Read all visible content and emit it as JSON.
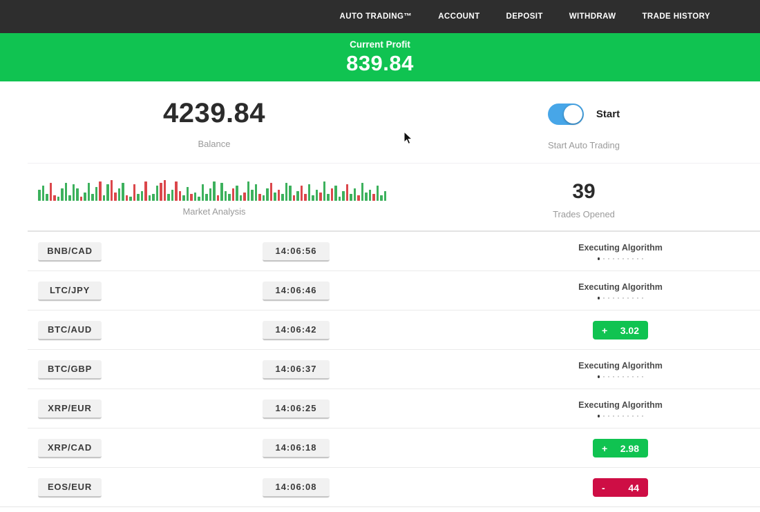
{
  "colors": {
    "green": "#10c351",
    "red": "#ce0e45",
    "toggle_blue": "#47a6e8",
    "nav_bg": "#2e2e2e",
    "bar_green": "#2daa4f",
    "bar_red": "#d8373c"
  },
  "nav": {
    "items": [
      {
        "label": "AUTO TRADING™"
      },
      {
        "label": "ACCOUNT"
      },
      {
        "label": "DEPOSIT"
      },
      {
        "label": "WITHDRAW"
      },
      {
        "label": "TRADE HISTORY"
      }
    ]
  },
  "profit_banner": {
    "label": "Current Profit",
    "value": "839.84"
  },
  "stats": {
    "balance": {
      "value": "4239.84",
      "label": "Balance"
    },
    "auto_trading": {
      "toggle_label": "Start",
      "label": "Start Auto Trading",
      "enabled": true
    },
    "trades_opened": {
      "value": "39",
      "label": "Trades Opened"
    }
  },
  "market_analysis": {
    "label": "Market Analysis",
    "bars": [
      "g16",
      "g22",
      "g10",
      "r26",
      "r8",
      "g6",
      "g18",
      "g26",
      "g8",
      "g24",
      "g18",
      "r6",
      "g12",
      "g26",
      "g10",
      "g20",
      "r28",
      "g8",
      "g24",
      "r30",
      "r12",
      "g18",
      "g26",
      "r8",
      "g6",
      "r24",
      "g10",
      "g14",
      "r28",
      "g8",
      "g10",
      "g22",
      "r26",
      "r30",
      "g10",
      "g16",
      "r28",
      "r14",
      "g8",
      "g20",
      "r10",
      "g12",
      "g6",
      "g24",
      "g10",
      "g18",
      "g28",
      "r8",
      "g26",
      "g14",
      "g10",
      "r18",
      "g22",
      "g8",
      "r12",
      "g28",
      "g16",
      "g24",
      "r10",
      "g8",
      "g18",
      "r26",
      "g12",
      "r16",
      "g10",
      "g26",
      "g22",
      "r8",
      "g14",
      "r22",
      "r10",
      "g24",
      "g8",
      "g16",
      "r12",
      "g28",
      "g10",
      "r18",
      "g22",
      "g6",
      "g14",
      "r24",
      "g10",
      "g18",
      "r8",
      "g26",
      "g12",
      "g16",
      "r10",
      "g22",
      "g8",
      "g14"
    ]
  },
  "executing": {
    "label": "Executing Algorithm",
    "dots": 10,
    "active_dot": 0
  },
  "trades": [
    {
      "pair": "BNB/CAD",
      "time": "14:06:56",
      "status": "executing"
    },
    {
      "pair": "LTC/JPY",
      "time": "14:06:46",
      "status": "executing"
    },
    {
      "pair": "BTC/AUD",
      "time": "14:06:42",
      "status": "profit",
      "sign": "+",
      "value": "3.02"
    },
    {
      "pair": "BTC/GBP",
      "time": "14:06:37",
      "status": "executing"
    },
    {
      "pair": "XRP/EUR",
      "time": "14:06:25",
      "status": "executing"
    },
    {
      "pair": "XRP/CAD",
      "time": "14:06:18",
      "status": "profit",
      "sign": "+",
      "value": "2.98"
    },
    {
      "pair": "EOS/EUR",
      "time": "14:06:08",
      "status": "loss",
      "sign": "-",
      "value": "44"
    }
  ]
}
